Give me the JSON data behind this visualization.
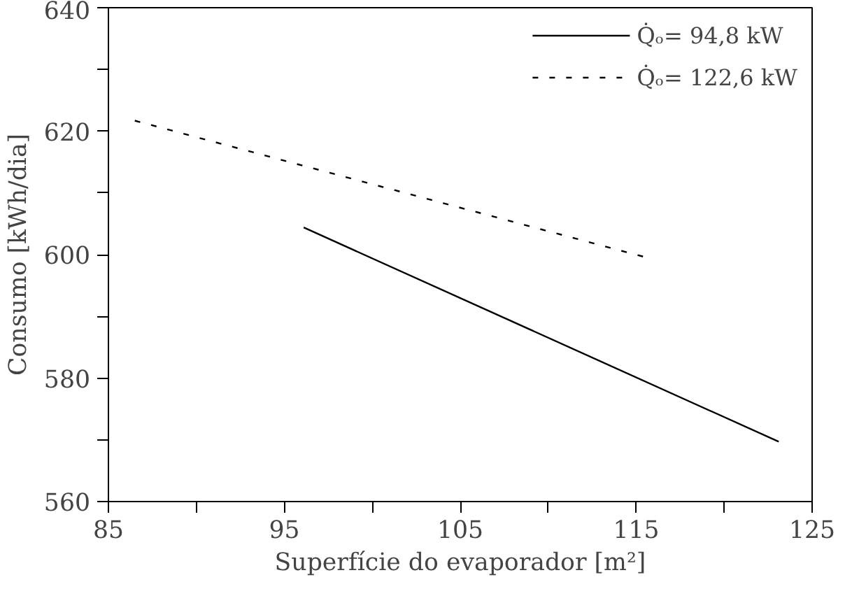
{
  "chart_data": {
    "type": "line",
    "xlabel": "Superfície do evaporador [m²]",
    "ylabel": "Consumo [kWh/dia]",
    "xlim": [
      85,
      125
    ],
    "ylim": [
      560,
      640
    ],
    "xticks": [
      85,
      {
        "value": 90,
        "label": null
      },
      95,
      {
        "value": 100,
        "label": null
      },
      105,
      {
        "value": 110,
        "label": null
      },
      115,
      {
        "value": 120,
        "label": null
      },
      125
    ],
    "yticks": [
      560,
      {
        "value": 570,
        "label": null
      },
      580,
      {
        "value": 590,
        "label": null
      },
      600,
      {
        "value": 610,
        "label": null
      },
      620,
      {
        "value": 630,
        "label": null
      },
      640
    ],
    "grid": false,
    "legend": "top right",
    "series": [
      {
        "name": "Q̇ₒ= 94,8 kW",
        "color": "#000000",
        "line_style": "solid",
        "x": [
          96.1,
          123.1
        ],
        "values": [
          604.4,
          569.7
        ]
      },
      {
        "name": "Q̇ₒ= 122,6 kW",
        "color": "#000000",
        "line_style": "dashed",
        "x": [
          86.5,
          115.5
        ],
        "values": [
          621.7,
          599.6
        ]
      }
    ]
  }
}
